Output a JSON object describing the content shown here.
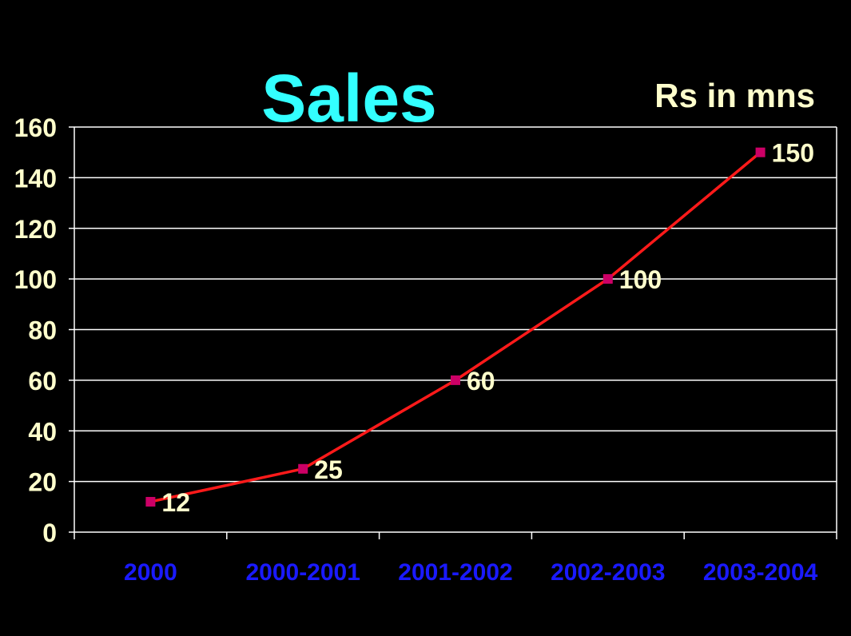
{
  "chart_data": {
    "type": "line",
    "title": "Sales",
    "unit_label": "Rs in mns",
    "categories": [
      "2000",
      "2000-2001",
      "2001-2002",
      "2002-2003",
      "2003-2004"
    ],
    "series": [
      {
        "values": [
          12,
          25,
          60,
          100,
          150
        ]
      }
    ],
    "ylim": [
      0,
      160
    ],
    "yticks": [
      0,
      20,
      40,
      60,
      80,
      100,
      120,
      140,
      160
    ],
    "grid": true,
    "legend": "none",
    "colors": {
      "background": "#000000",
      "title": "#33ffff",
      "line": "#ff1a1a",
      "marker": "#cc0066",
      "axis_text": "#ffffcc",
      "category_text": "#1a1aff",
      "grid": "#ffffff"
    }
  }
}
